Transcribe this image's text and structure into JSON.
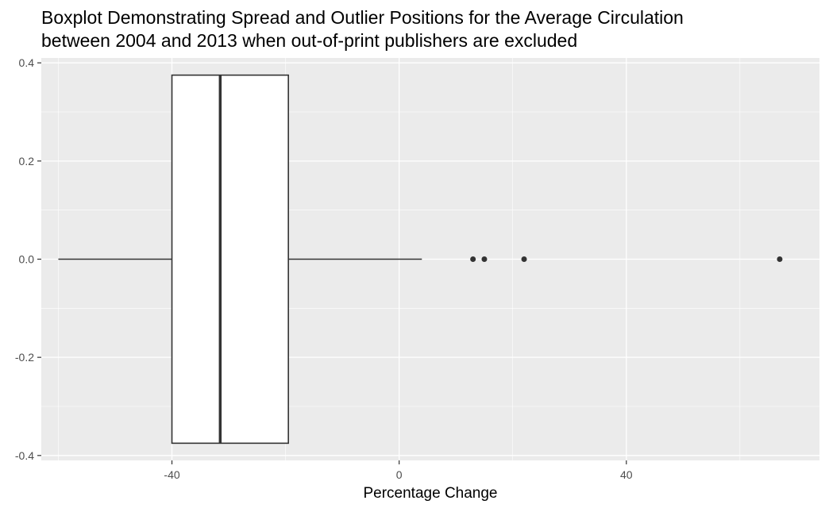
{
  "chart_data": {
    "type": "boxplot",
    "title_lines": [
      "Boxplot Demonstrating Spread and Outlier Positions for the Average Circulation",
      "between 2004 and 2013 when out-of-print publishers are excluded"
    ],
    "xlabel": "Percentage Change",
    "ylabel": "",
    "xlim": [
      -63,
      74
    ],
    "ylim": [
      -0.41,
      0.41
    ],
    "x_ticks": [
      -40,
      0,
      40
    ],
    "x_tick_labels": [
      "-40",
      "0",
      "40"
    ],
    "y_ticks": [
      0.4,
      0.2,
      0.0,
      -0.2,
      -0.4
    ],
    "y_tick_labels": [
      "0.4",
      "0.2",
      "0.0",
      "-0.2",
      "-0.4"
    ],
    "box": {
      "whisker_low": -60,
      "q1": -40,
      "median": -31.5,
      "q3": -19.5,
      "whisker_high": 4,
      "y_center": 0.0,
      "half_height": 0.375
    },
    "outliers": [
      13,
      15,
      22,
      67
    ],
    "grid": true,
    "legend": "none",
    "colors": {
      "panel_background": "#ebebeb",
      "grid_major": "#ffffff",
      "box_fill": "#ffffff",
      "box_line": "#333333",
      "outlier": "#333333",
      "tick_text": "#4d4d4d"
    }
  }
}
